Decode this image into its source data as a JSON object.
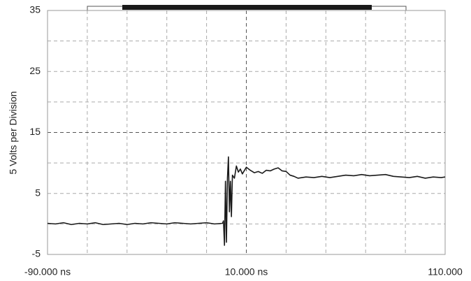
{
  "chart_data": {
    "type": "line",
    "y_label": "5 Volts per Division",
    "xlim": [
      -90,
      110
    ],
    "ylim": [
      -5,
      35
    ],
    "xticks": [
      {
        "value": -90,
        "label": "-90.000 ns"
      },
      {
        "value": 10,
        "label": "10.000 ns"
      },
      {
        "value": 110,
        "label": "110.000"
      }
    ],
    "xminorticks": [
      -70,
      -50,
      -30,
      -10,
      30,
      50,
      70,
      90
    ],
    "yticks": [
      -5,
      5,
      15,
      25,
      35
    ],
    "yminorticks": [
      0,
      10,
      20,
      30
    ],
    "grid": true,
    "series": [
      {
        "color": "#1a1a1a",
        "x": [
          -90,
          -86,
          -82,
          -78,
          -74,
          -70,
          -66,
          -62,
          -58,
          -54,
          -50,
          -46,
          -42,
          -38,
          -34,
          -30,
          -26,
          -22,
          -18,
          -14,
          -10,
          -6,
          -2,
          -1.5,
          -1,
          -0.5,
          0,
          0.5,
          1,
          1.5,
          2,
          2.5,
          3,
          4,
          5,
          6,
          7,
          8,
          10,
          12,
          14,
          16,
          18,
          20,
          22,
          24,
          26,
          28,
          30,
          32,
          34,
          36,
          38,
          40,
          44,
          48,
          52,
          56,
          60,
          64,
          68,
          72,
          76,
          80,
          84,
          88,
          92,
          96,
          100,
          104,
          108,
          110
        ],
        "values": [
          0.1,
          0.0,
          0.2,
          -0.1,
          0.1,
          0.0,
          0.2,
          -0.1,
          0.0,
          0.1,
          -0.1,
          0.1,
          0.0,
          0.2,
          0.1,
          0.0,
          0.2,
          0.1,
          0.0,
          0.1,
          0.2,
          0.0,
          0.1,
          0.5,
          -3.5,
          7,
          -3,
          7.5,
          11,
          2,
          7,
          1.2,
          8,
          7.5,
          9.5,
          8.5,
          9,
          8.2,
          9.3,
          8.8,
          8.4,
          8.6,
          8.3,
          8.8,
          8.7,
          9.0,
          9.2,
          8.7,
          8.6,
          8.0,
          7.8,
          7.5,
          7.6,
          7.7,
          7.6,
          7.8,
          7.6,
          7.8,
          8.0,
          7.9,
          8.1,
          7.9,
          8.0,
          8.1,
          7.8,
          7.7,
          7.6,
          7.8,
          7.5,
          7.7,
          7.6,
          7.7
        ]
      }
    ]
  }
}
